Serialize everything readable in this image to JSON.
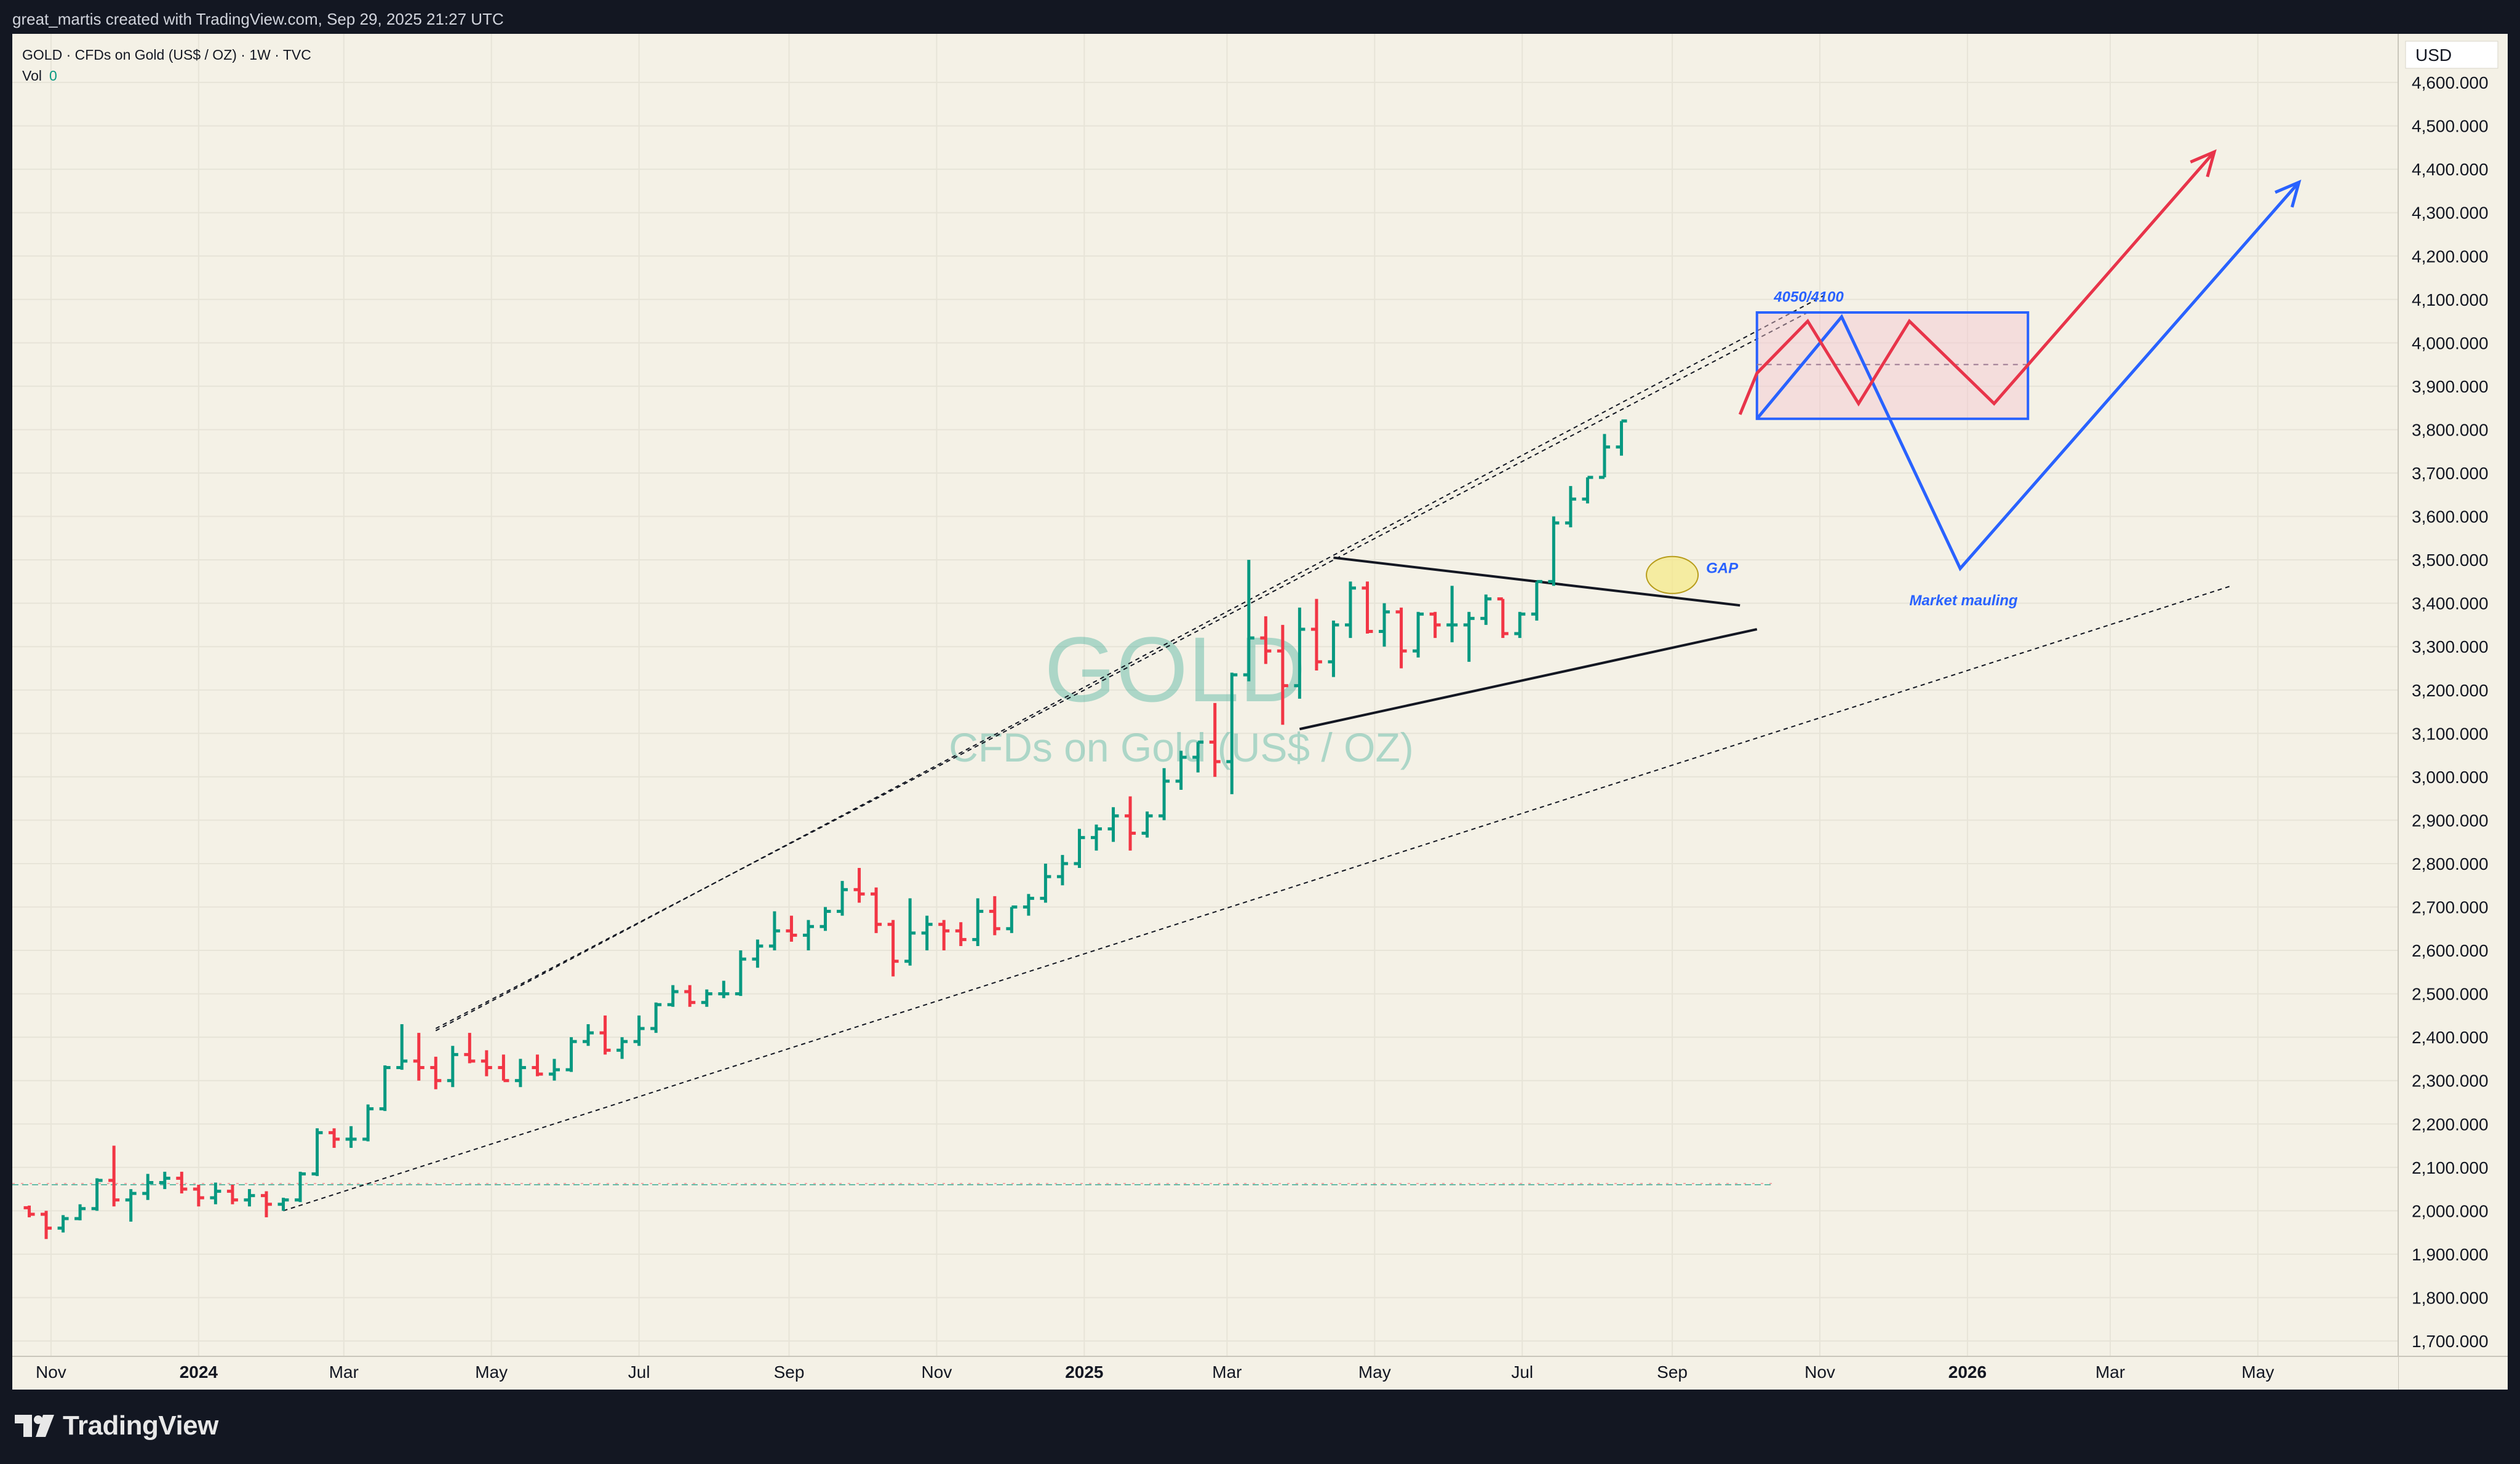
{
  "header": {
    "credit": "great_martis created with TradingView.com, Sep 29, 2025 21:27 UTC"
  },
  "legend": {
    "symbol_line": "GOLD · CFDs on Gold (US$ / OZ) · 1W · TVC",
    "vol_label": "Vol",
    "vol_value": "0"
  },
  "watermark": {
    "symbol": "GOLD",
    "description": "CFDs on Gold (US$ / OZ)"
  },
  "footer": {
    "brand": "TradingView"
  },
  "colors": {
    "up": "#089981",
    "down": "#f23645",
    "background": "#f4f1e6",
    "projection_red": "#e8344a",
    "projection_blue": "#2962ff"
  },
  "chart_data": {
    "type": "candlestick",
    "currency": "USD",
    "timeframe": "1W",
    "ylim": [
      1700,
      4650
    ],
    "y_ticks": [
      "4,600.000",
      "4,500.000",
      "4,400.000",
      "4,300.000",
      "4,200.000",
      "4,100.000",
      "4,000.000",
      "3,900.000",
      "3,800.000",
      "3,700.000",
      "3,600.000",
      "3,500.000",
      "3,400.000",
      "3,300.000",
      "3,200.000",
      "3,100.000",
      "3,000.000",
      "2,900.000",
      "2,800.000",
      "2,700.000",
      "2,600.000",
      "2,500.000",
      "2,400.000",
      "2,300.000",
      "2,200.000",
      "2,100.000",
      "2,000.000",
      "1,900.000",
      "1,800.000",
      "1,700.000"
    ],
    "x_ticks": [
      {
        "label": "Nov",
        "date": "2023-11-01",
        "bold": false
      },
      {
        "label": "2024",
        "date": "2024-01-01",
        "bold": true
      },
      {
        "label": "Mar",
        "date": "2024-03-01",
        "bold": false
      },
      {
        "label": "May",
        "date": "2024-05-01",
        "bold": false
      },
      {
        "label": "Jul",
        "date": "2024-07-01",
        "bold": false
      },
      {
        "label": "Sep",
        "date": "2024-09-01",
        "bold": false
      },
      {
        "label": "Nov",
        "date": "2024-11-01",
        "bold": false
      },
      {
        "label": "2025",
        "date": "2025-01-01",
        "bold": true
      },
      {
        "label": "Mar",
        "date": "2025-03-01",
        "bold": false
      },
      {
        "label": "May",
        "date": "2025-05-01",
        "bold": false
      },
      {
        "label": "Jul",
        "date": "2025-07-01",
        "bold": false
      },
      {
        "label": "Sep",
        "date": "2025-09-01",
        "bold": false
      },
      {
        "label": "Nov",
        "date": "2025-11-01",
        "bold": false
      },
      {
        "label": "2026",
        "date": "2026-01-01",
        "bold": true
      },
      {
        "label": "Mar",
        "date": "2026-03-01",
        "bold": false
      },
      {
        "label": "May",
        "date": "2026-05-01",
        "bold": false
      }
    ],
    "x_range": [
      "2023-10-16",
      "2026-06-28"
    ],
    "start_week": "2023-10-23",
    "candles": [
      [
        2007,
        2012,
        1985,
        1992
      ],
      [
        1992,
        2000,
        1935,
        1960
      ],
      [
        1960,
        1990,
        1950,
        1982
      ],
      [
        1982,
        2015,
        1978,
        2005
      ],
      [
        2005,
        2075,
        2000,
        2070
      ],
      [
        2070,
        2150,
        2010,
        2025
      ],
      [
        2025,
        2050,
        1975,
        2040
      ],
      [
        2040,
        2085,
        2025,
        2065
      ],
      [
        2065,
        2090,
        2050,
        2075
      ],
      [
        2075,
        2090,
        2040,
        2050
      ],
      [
        2050,
        2060,
        2010,
        2030
      ],
      [
        2030,
        2065,
        2015,
        2045
      ],
      [
        2045,
        2060,
        2015,
        2025
      ],
      [
        2025,
        2050,
        2010,
        2035
      ],
      [
        2035,
        2045,
        1985,
        2015
      ],
      [
        2015,
        2030,
        2000,
        2025
      ],
      [
        2025,
        2090,
        2020,
        2085
      ],
      [
        2085,
        2190,
        2080,
        2180
      ],
      [
        2180,
        2190,
        2145,
        2165
      ],
      [
        2165,
        2195,
        2145,
        2165
      ],
      [
        2165,
        2245,
        2160,
        2235
      ],
      [
        2235,
        2335,
        2230,
        2330
      ],
      [
        2330,
        2430,
        2325,
        2345
      ],
      [
        2345,
        2410,
        2300,
        2330
      ],
      [
        2330,
        2355,
        2280,
        2300
      ],
      [
        2300,
        2380,
        2285,
        2360
      ],
      [
        2360,
        2410,
        2340,
        2345
      ],
      [
        2345,
        2370,
        2310,
        2330
      ],
      [
        2330,
        2360,
        2300,
        2300
      ],
      [
        2300,
        2350,
        2285,
        2330
      ],
      [
        2330,
        2360,
        2310,
        2315
      ],
      [
        2315,
        2350,
        2300,
        2325
      ],
      [
        2325,
        2400,
        2320,
        2390
      ],
      [
        2390,
        2430,
        2380,
        2410
      ],
      [
        2410,
        2450,
        2360,
        2370
      ],
      [
        2370,
        2400,
        2350,
        2390
      ],
      [
        2390,
        2450,
        2380,
        2420
      ],
      [
        2420,
        2480,
        2410,
        2475
      ],
      [
        2475,
        2520,
        2470,
        2505
      ],
      [
        2505,
        2520,
        2470,
        2480
      ],
      [
        2480,
        2510,
        2470,
        2500
      ],
      [
        2500,
        2530,
        2490,
        2500
      ],
      [
        2500,
        2600,
        2495,
        2580
      ],
      [
        2580,
        2625,
        2560,
        2610
      ],
      [
        2610,
        2690,
        2600,
        2645
      ],
      [
        2645,
        2680,
        2620,
        2635
      ],
      [
        2635,
        2670,
        2600,
        2655
      ],
      [
        2655,
        2700,
        2645,
        2690
      ],
      [
        2690,
        2760,
        2680,
        2740
      ],
      [
        2740,
        2790,
        2710,
        2730
      ],
      [
        2730,
        2745,
        2640,
        2660
      ],
      [
        2660,
        2670,
        2540,
        2575
      ],
      [
        2575,
        2720,
        2565,
        2640
      ],
      [
        2640,
        2680,
        2600,
        2660
      ],
      [
        2660,
        2670,
        2600,
        2645
      ],
      [
        2645,
        2665,
        2610,
        2625
      ],
      [
        2625,
        2720,
        2610,
        2690
      ],
      [
        2690,
        2725,
        2635,
        2650
      ],
      [
        2650,
        2700,
        2640,
        2700
      ],
      [
        2700,
        2730,
        2680,
        2720
      ],
      [
        2720,
        2800,
        2710,
        2770
      ],
      [
        2770,
        2820,
        2750,
        2800
      ],
      [
        2800,
        2880,
        2790,
        2860
      ],
      [
        2860,
        2890,
        2830,
        2880
      ],
      [
        2880,
        2930,
        2850,
        2910
      ],
      [
        2910,
        2955,
        2830,
        2870
      ],
      [
        2870,
        2920,
        2860,
        2910
      ],
      [
        2910,
        3020,
        2900,
        2990
      ],
      [
        2990,
        3060,
        2970,
        3045
      ],
      [
        3045,
        3080,
        3010,
        3080
      ],
      [
        3080,
        3170,
        3000,
        3035
      ],
      [
        3035,
        3240,
        2960,
        3235
      ],
      [
        3235,
        3500,
        3220,
        3320
      ],
      [
        3320,
        3370,
        3260,
        3290
      ],
      [
        3290,
        3350,
        3120,
        3210
      ],
      [
        3210,
        3390,
        3180,
        3340
      ],
      [
        3340,
        3410,
        3245,
        3265
      ],
      [
        3265,
        3360,
        3230,
        3350
      ],
      [
        3350,
        3450,
        3320,
        3435
      ],
      [
        3435,
        3450,
        3330,
        3335
      ],
      [
        3335,
        3400,
        3300,
        3380
      ],
      [
        3380,
        3390,
        3250,
        3290
      ],
      [
        3290,
        3380,
        3275,
        3375
      ],
      [
        3375,
        3380,
        3320,
        3350
      ],
      [
        3350,
        3440,
        3310,
        3350
      ],
      [
        3350,
        3380,
        3265,
        3365
      ],
      [
        3365,
        3420,
        3350,
        3410
      ],
      [
        3410,
        3410,
        3320,
        3330
      ],
      [
        3330,
        3380,
        3320,
        3375
      ],
      [
        3375,
        3450,
        3360,
        3450
      ],
      [
        3450,
        3600,
        3440,
        3585
      ],
      [
        3585,
        3670,
        3575,
        3640
      ],
      [
        3640,
        3690,
        3630,
        3690
      ],
      [
        3690,
        3790,
        3690,
        3760
      ],
      [
        3760,
        3820,
        3740,
        3820
      ]
    ],
    "annotations": {
      "target_zone_label": "4050/4100",
      "gap_label": "GAP",
      "market_label": "Market mauling",
      "target_zone": {
        "from": "2025-10-06",
        "to": "2026-01-26",
        "low": 3825,
        "high": 4070,
        "mid": 3950
      }
    },
    "projection_red": [
      [
        "2025-09-29",
        3835
      ],
      [
        "2025-10-06",
        3930
      ],
      [
        "2025-10-27",
        4050
      ],
      [
        "2025-11-17",
        3860
      ],
      [
        "2025-12-08",
        4050
      ],
      [
        "2026-01-12",
        3860
      ],
      [
        "2026-04-13",
        4440
      ]
    ],
    "projection_blue": [
      [
        "2025-10-06",
        3825
      ],
      [
        "2025-11-10",
        4060
      ],
      [
        "2025-12-29",
        3480
      ],
      [
        "2026-05-18",
        4370
      ]
    ],
    "trendlines": {
      "channel_upper": [
        [
          "2024-04-08",
          2420
        ],
        [
          "2025-10-27",
          4070
        ]
      ],
      "channel_upper2": [
        [
          "2024-04-08",
          2415
        ],
        [
          "2025-11-03",
          4110
        ]
      ],
      "channel_lower": [
        [
          "2024-02-05",
          2000
        ],
        [
          "2026-04-20",
          3440
        ]
      ],
      "triangle_upper": [
        [
          "2025-04-14",
          3505
        ],
        [
          "2025-09-29",
          3395
        ]
      ],
      "triangle_lower": [
        [
          "2025-03-31",
          3110
        ],
        [
          "2025-10-06",
          3340
        ]
      ],
      "support_level": 2060,
      "support_range": [
        "2023-10-16",
        "2025-10-13"
      ]
    }
  }
}
